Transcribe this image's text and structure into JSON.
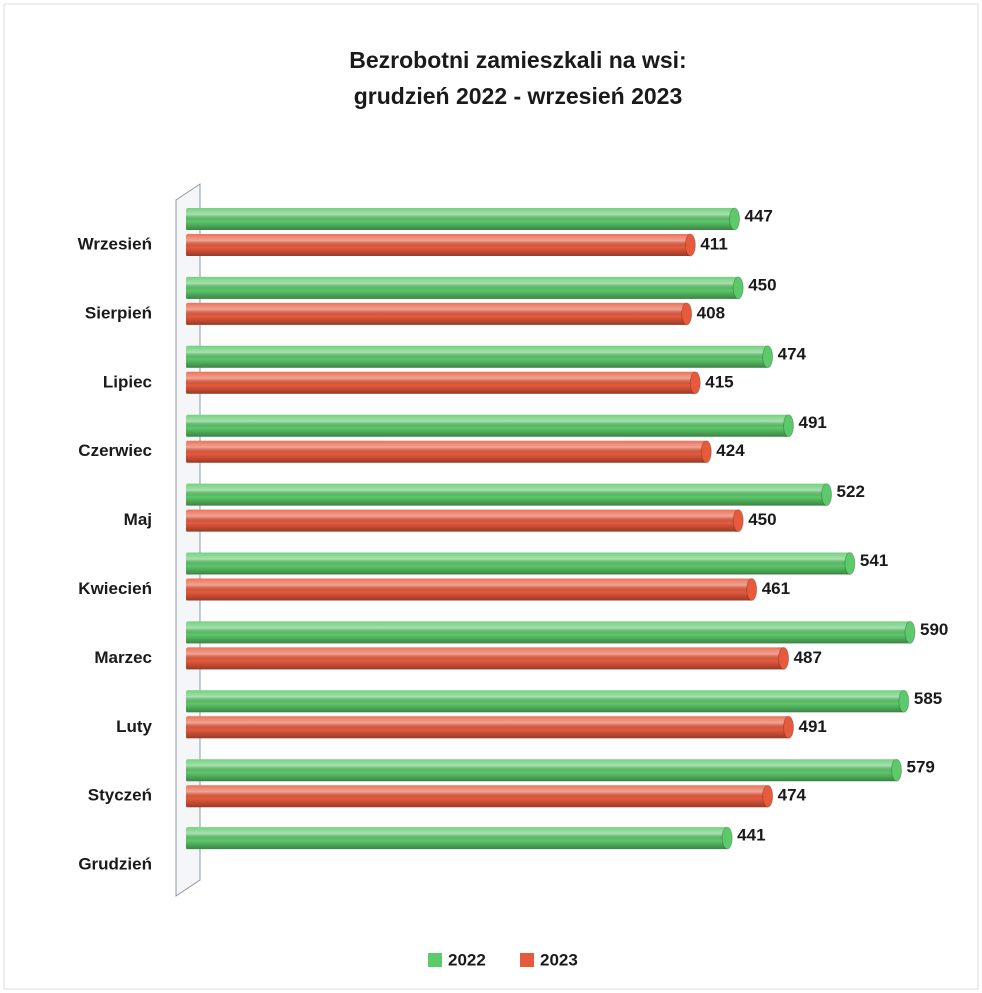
{
  "chart_data": {
    "type": "bar",
    "orientation": "horizontal",
    "title": [
      "Bezrobotni zamieszkali na wsi:",
      "grudzień 2022 - wrzesień 2023"
    ],
    "categories": [
      "Wrzesień",
      "Sierpień",
      "Lipiec",
      "Czerwiec",
      "Maj",
      "Kwiecień",
      "Marzec",
      "Luty",
      "Styczeń",
      "Grudzień"
    ],
    "series": [
      {
        "name": "2022",
        "color": "#5cc96a",
        "values": [
          447,
          450,
          474,
          491,
          522,
          541,
          590,
          585,
          579,
          441
        ]
      },
      {
        "name": "2023",
        "color": "#e85a3c",
        "values": [
          411,
          408,
          415,
          424,
          450,
          461,
          487,
          491,
          474,
          null
        ]
      }
    ],
    "legend": "bottom"
  }
}
